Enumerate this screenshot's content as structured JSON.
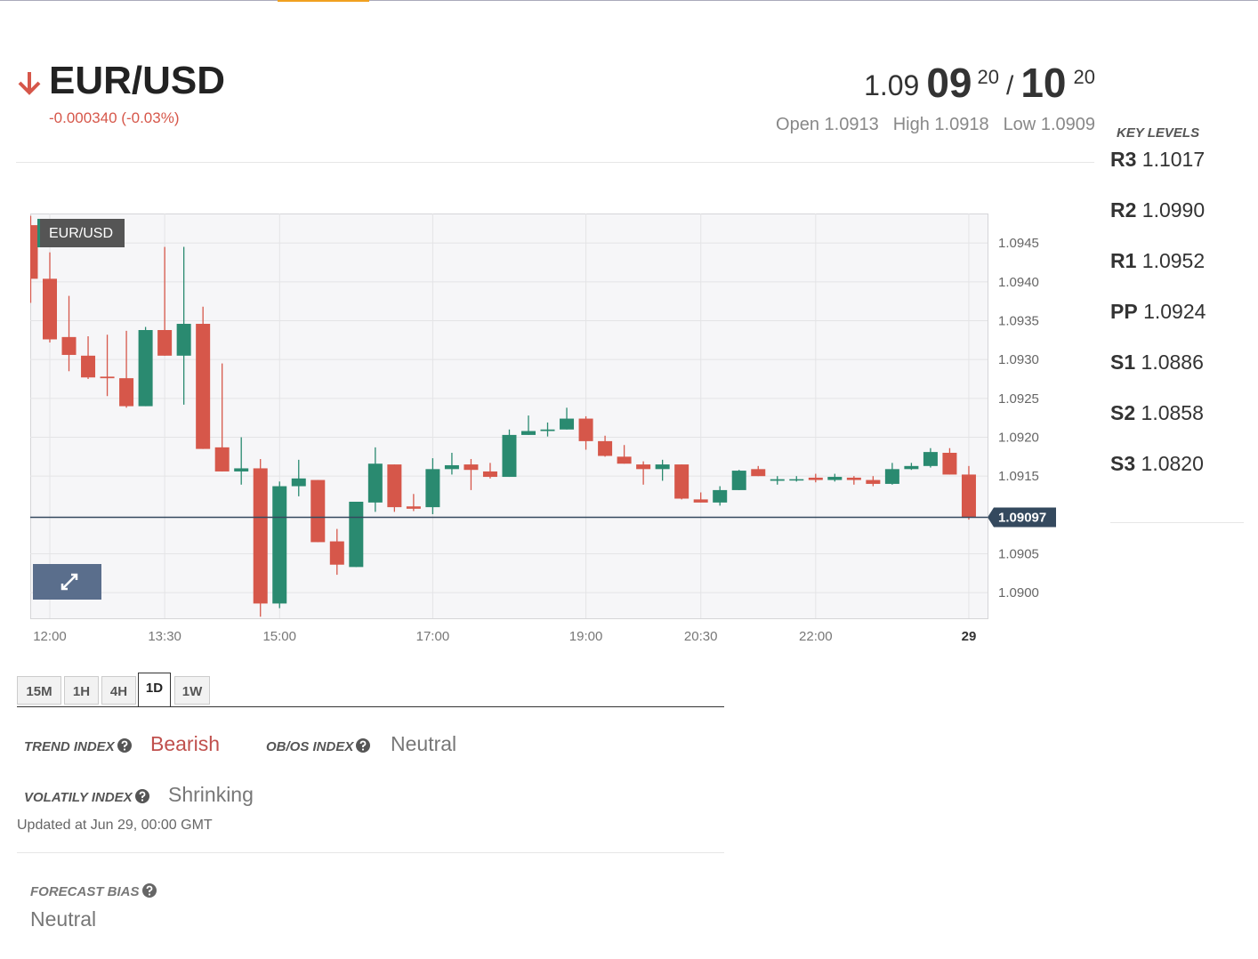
{
  "header": {
    "symbol": "EUR/USD",
    "change": "-0.000340 (-0.03%)",
    "bid_big": "1.09",
    "bid_pips": "09",
    "bid_fraction": "20",
    "separator": "/",
    "ask_pips": "10",
    "ask_fraction": "20",
    "stats": [
      {
        "label": "Open",
        "value": "1.0913"
      },
      {
        "label": "High",
        "value": "1.0918"
      },
      {
        "label": "Low",
        "value": "1.0909"
      }
    ]
  },
  "key_levels": {
    "title": "KEY LEVELS",
    "levels": [
      {
        "label": "R3",
        "value": "1.1017"
      },
      {
        "label": "R2",
        "value": "1.0990"
      },
      {
        "label": "R1",
        "value": "1.0952"
      },
      {
        "label": "PP",
        "value": "1.0924"
      },
      {
        "label": "S1",
        "value": "1.0886"
      },
      {
        "label": "S2",
        "value": "1.0858"
      },
      {
        "label": "S3",
        "value": "1.0820"
      }
    ]
  },
  "chart_data": {
    "type": "candlestick",
    "title": "EUR/USD",
    "categories": [
      null,
      "12:00",
      null,
      null,
      null,
      null,
      null,
      "13:30",
      null,
      null,
      null,
      null,
      null,
      "15:00",
      null,
      null,
      null,
      null,
      null,
      null,
      null,
      "17:00",
      null,
      null,
      null,
      null,
      null,
      null,
      null,
      "19:00",
      null,
      null,
      null,
      null,
      null,
      "20:30",
      null,
      null,
      null,
      null,
      null,
      "22:00",
      null,
      null,
      null,
      null,
      null,
      null,
      null,
      "29"
    ],
    "open": [
      1.09473,
      1.09404,
      1.09329,
      1.09305,
      1.09278,
      1.09276,
      1.0924,
      1.09338,
      1.09305,
      1.09346,
      1.09187,
      1.09156,
      1.0916,
      1.08986,
      1.09137,
      1.09145,
      1.09066,
      1.09033,
      1.09116,
      1.09165,
      1.09111,
      1.0911,
      1.09159,
      1.09165,
      1.09156,
      1.09149,
      1.09203,
      1.09208,
      1.0921,
      1.09224,
      1.09195,
      1.09175,
      1.09165,
      1.09159,
      1.09165,
      1.0912,
      1.09116,
      1.09132,
      1.09159,
      1.09144,
      1.09145,
      1.09148,
      1.09145,
      1.09148,
      1.09145,
      1.0914,
      1.09159,
      1.09163,
      1.0918,
      1.09152
    ],
    "high": [
      1.09485,
      1.09438,
      1.09382,
      1.0933,
      1.09332,
      1.09337,
      1.09342,
      1.09445,
      1.09445,
      1.09368,
      1.09295,
      1.092,
      1.09172,
      1.09143,
      1.09171,
      1.09145,
      1.09082,
      1.09117,
      1.09187,
      1.09165,
      1.09127,
      1.09173,
      1.0918,
      1.09172,
      1.09167,
      1.0921,
      1.09228,
      1.09219,
      1.09238,
      1.09227,
      1.09202,
      1.0919,
      1.09169,
      1.09171,
      1.09165,
      1.09129,
      1.09137,
      1.09158,
      1.09163,
      1.0915,
      1.0915,
      1.09153,
      1.09153,
      1.0915,
      1.0915,
      1.09167,
      1.09167,
      1.09186,
      1.09186,
      1.09163
    ],
    "low": [
      1.09373,
      1.09322,
      1.09285,
      1.09275,
      1.09253,
      1.09238,
      1.0924,
      1.09305,
      1.09242,
      1.09185,
      1.09156,
      1.09139,
      1.08969,
      1.0898,
      1.09124,
      1.09065,
      1.09023,
      1.09033,
      1.09104,
      1.09104,
      1.09105,
      1.09101,
      1.09152,
      1.09132,
      1.09147,
      1.09149,
      1.09203,
      1.09201,
      1.0921,
      1.09184,
      1.09175,
      1.09166,
      1.09139,
      1.09144,
      1.0912,
      1.09116,
      1.09112,
      1.09132,
      1.0915,
      1.09139,
      1.09143,
      1.09142,
      1.09143,
      1.09139,
      1.09137,
      1.09139,
      1.09158,
      1.09161,
      1.09152,
      1.09094
    ],
    "close": [
      1.09404,
      1.09326,
      1.09306,
      1.09277,
      1.09276,
      1.0924,
      1.09338,
      1.09305,
      1.09346,
      1.09185,
      1.09156,
      1.0916,
      1.08986,
      1.09137,
      1.09147,
      1.09065,
      1.09036,
      1.09117,
      1.09166,
      1.0911,
      1.09108,
      1.09159,
      1.09164,
      1.09158,
      1.09149,
      1.09203,
      1.09208,
      1.0921,
      1.09224,
      1.09195,
      1.09176,
      1.09166,
      1.09159,
      1.09165,
      1.09121,
      1.09116,
      1.09132,
      1.09157,
      1.0915,
      1.09146,
      1.09146,
      1.09145,
      1.09149,
      1.09145,
      1.0914,
      1.09159,
      1.09163,
      1.09181,
      1.09152,
      1.09097
    ],
    "up_color": "#2a8a70",
    "down_color": "#d6574a",
    "ylim": [
      1.08967,
      1.09488
    ],
    "yticks": [
      1.0945,
      {
        "value": 1.094,
        "label": "1.0940"
      },
      1.0935,
      {
        "value": 1.093,
        "label": "1.0930"
      },
      1.0925,
      {
        "value": 1.092,
        "label": "1.0920"
      },
      1.0915,
      1.0905,
      {
        "value": 1.09,
        "label": "1.0900"
      }
    ],
    "grid": true,
    "last_price": 1.09097,
    "last_price_color": "#34495e"
  },
  "timeframes": [
    "15M",
    "1H",
    "4H",
    "1D",
    "1W"
  ],
  "indices": [
    {
      "label": "TREND INDEX",
      "value": "Bearish"
    },
    {
      "label": "OB/OS INDEX",
      "value": "Neutral"
    },
    {
      "label": "VOLATILY INDEX",
      "value": "Shrinking"
    }
  ],
  "updated": "Updated at Jun 29, 00:00 GMT",
  "forecast": {
    "label": "FORECAST BIAS",
    "value": "Neutral"
  }
}
